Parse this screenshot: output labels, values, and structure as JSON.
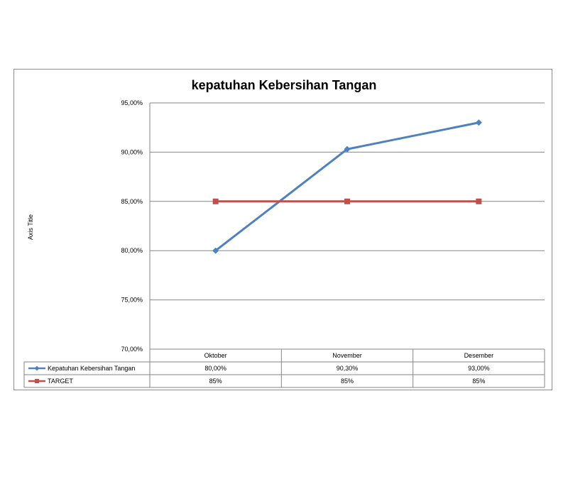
{
  "chart_data": {
    "type": "line",
    "title": "kepatuhan Kebersihan Tangan",
    "ylabel": "Axis Title",
    "xlabel": "",
    "categories": [
      "Oktober",
      "November",
      "Desember"
    ],
    "ylim": [
      70,
      95
    ],
    "yticks": [
      70,
      75,
      80,
      85,
      90,
      95
    ],
    "yticks_labels": [
      "70,00%",
      "75,00%",
      "80,00%",
      "85,00%",
      "90,00%",
      "95,00%"
    ],
    "grid": true,
    "legend": "data-table",
    "series": [
      {
        "name": "Kepatuhan Kebersihan Tangan",
        "values": [
          80.0,
          90.3,
          93.0
        ],
        "labels": [
          "80,00%",
          "90,30%",
          "93,00%"
        ],
        "color": "#4f81bd",
        "marker": "diamond"
      },
      {
        "name": "TARGET",
        "values": [
          85,
          85,
          85
        ],
        "labels": [
          "85%",
          "85%",
          "85%"
        ],
        "color": "#c0504d",
        "marker": "square"
      }
    ]
  }
}
